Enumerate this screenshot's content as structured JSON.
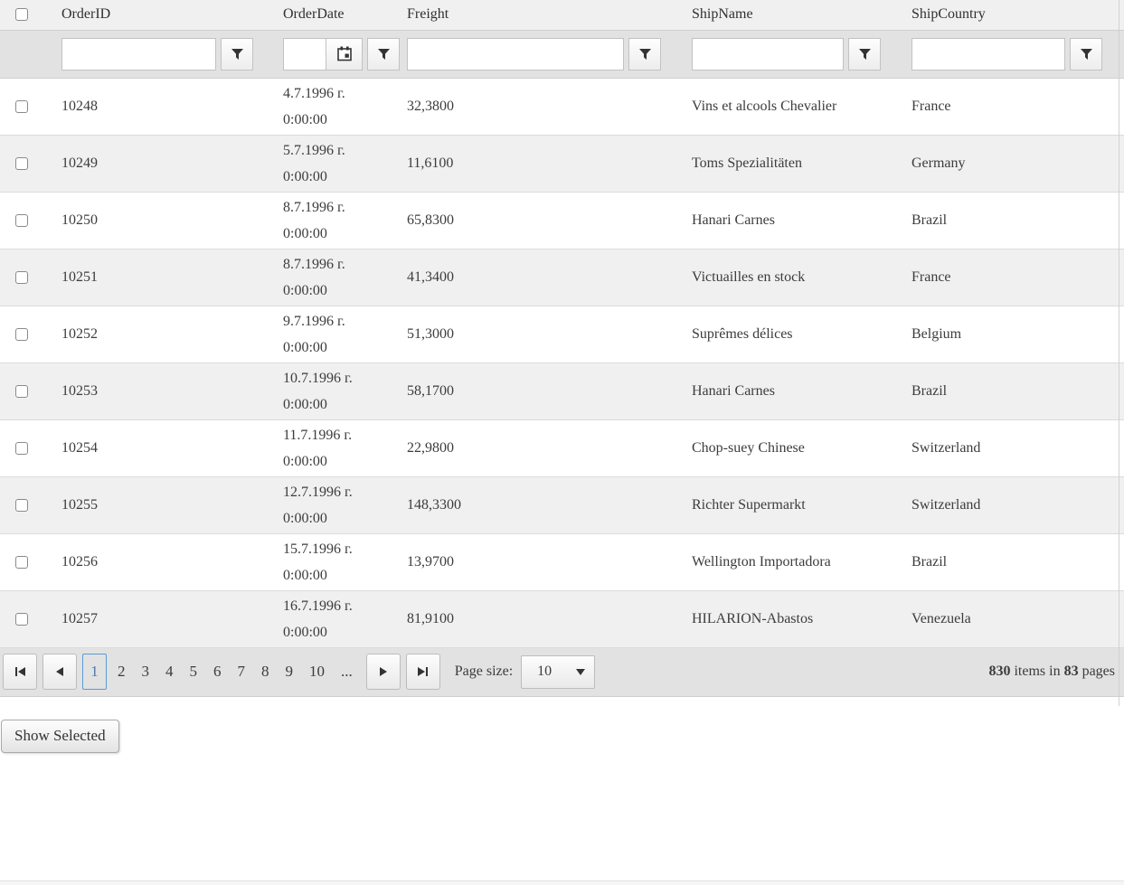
{
  "grid": {
    "columns": [
      "OrderID",
      "OrderDate",
      "Freight",
      "ShipName",
      "ShipCountry"
    ],
    "rows": [
      {
        "order_id": "10248",
        "order_date": "4.7.1996 г.",
        "order_time": "0:00:00",
        "freight": "32,3800",
        "ship_name": "Vins et alcools Chevalier",
        "ship_country": "France"
      },
      {
        "order_id": "10249",
        "order_date": "5.7.1996 г.",
        "order_time": "0:00:00",
        "freight": "11,6100",
        "ship_name": "Toms Spezialitäten",
        "ship_country": "Germany"
      },
      {
        "order_id": "10250",
        "order_date": "8.7.1996 г.",
        "order_time": "0:00:00",
        "freight": "65,8300",
        "ship_name": "Hanari Carnes",
        "ship_country": "Brazil"
      },
      {
        "order_id": "10251",
        "order_date": "8.7.1996 г.",
        "order_time": "0:00:00",
        "freight": "41,3400",
        "ship_name": "Victuailles en stock",
        "ship_country": "France"
      },
      {
        "order_id": "10252",
        "order_date": "9.7.1996 г.",
        "order_time": "0:00:00",
        "freight": "51,3000",
        "ship_name": "Suprêmes délices",
        "ship_country": "Belgium"
      },
      {
        "order_id": "10253",
        "order_date": "10.7.1996 г.",
        "order_time": "0:00:00",
        "freight": "58,1700",
        "ship_name": "Hanari Carnes",
        "ship_country": "Brazil"
      },
      {
        "order_id": "10254",
        "order_date": "11.7.1996 г.",
        "order_time": "0:00:00",
        "freight": "22,9800",
        "ship_name": "Chop-suey Chinese",
        "ship_country": "Switzerland"
      },
      {
        "order_id": "10255",
        "order_date": "12.7.1996 г.",
        "order_time": "0:00:00",
        "freight": "148,3300",
        "ship_name": "Richter Supermarkt",
        "ship_country": "Switzerland"
      },
      {
        "order_id": "10256",
        "order_date": "15.7.1996 г.",
        "order_time": "0:00:00",
        "freight": "13,9700",
        "ship_name": "Wellington Importadora",
        "ship_country": "Brazil"
      },
      {
        "order_id": "10257",
        "order_date": "16.7.1996 г.",
        "order_time": "0:00:00",
        "freight": "81,9100",
        "ship_name": "HILARION-Abastos",
        "ship_country": "Venezuela"
      }
    ],
    "pager": {
      "pages": [
        "1",
        "2",
        "3",
        "4",
        "5",
        "6",
        "7",
        "8",
        "9",
        "10",
        "..."
      ],
      "current_page": "1",
      "page_size_label": "Page size:",
      "page_size_value": "10",
      "summary": {
        "items": "830",
        "mid": " items in ",
        "pages": "83",
        "end": " pages"
      }
    }
  },
  "footer": {
    "show_selected_label": "Show Selected"
  },
  "colors": {
    "accent_current_page_border": "#5b9bd5",
    "accent_current_page_text": "#4d7ba8"
  }
}
